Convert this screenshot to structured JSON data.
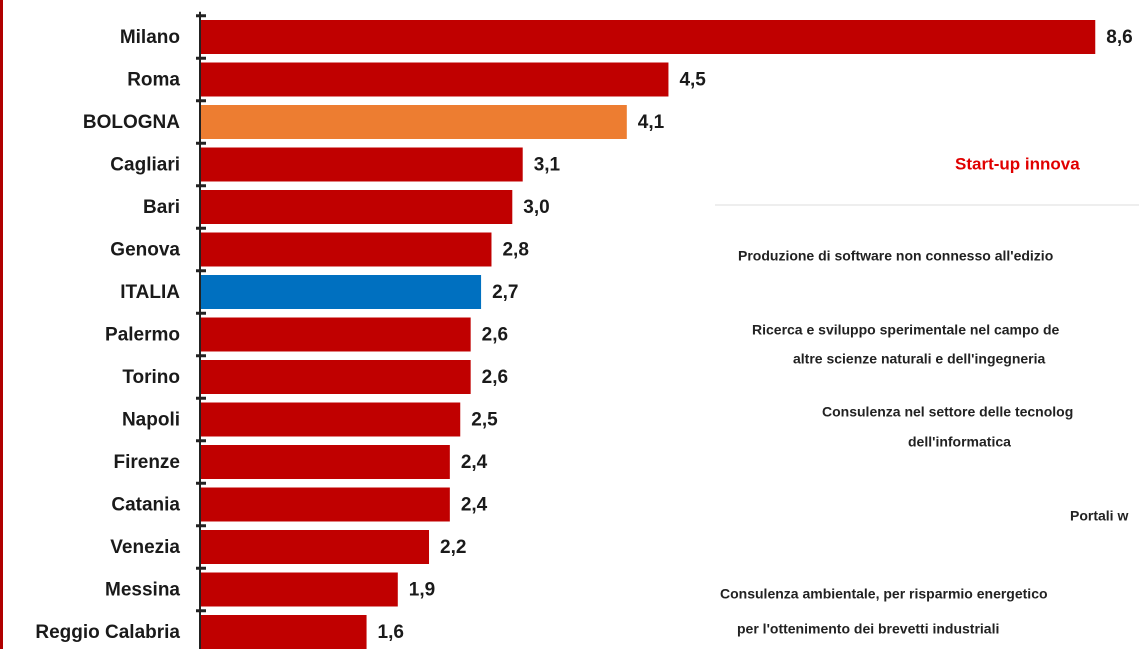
{
  "chart_data": {
    "type": "bar",
    "orientation": "horizontal",
    "categories": [
      "Milano",
      "Roma",
      "BOLOGNA",
      "Cagliari",
      "Bari",
      "Genova",
      "ITALIA",
      "Palermo",
      "Torino",
      "Napoli",
      "Firenze",
      "Catania",
      "Venezia",
      "Messina",
      "Reggio Calabria"
    ],
    "values": [
      8.6,
      4.5,
      4.1,
      3.1,
      3.0,
      2.8,
      2.7,
      2.6,
      2.6,
      2.5,
      2.4,
      2.4,
      2.2,
      1.9,
      1.6
    ],
    "value_labels": [
      "8,6",
      "4,5",
      "4,1",
      "3,1",
      "3,0",
      "2,8",
      "2,7",
      "2,6",
      "2,6",
      "2,5",
      "2,4",
      "2,4",
      "2,2",
      "1,9",
      "1,6"
    ],
    "colors": [
      "#c00000",
      "#c00000",
      "#ed7d31",
      "#c00000",
      "#c00000",
      "#c00000",
      "#0070c0",
      "#c00000",
      "#c00000",
      "#c00000",
      "#c00000",
      "#c00000",
      "#c00000",
      "#c00000",
      "#c00000"
    ],
    "annotations": [
      "Start-up innova",
      "Produzione di software non connesso all'edizio",
      "Ricerca e sviluppo sperimentale nel campo de",
      "altre scienze naturali e dell'ingegneria",
      "Consulenza nel settore delle tecnolog",
      "dell'informatica",
      "Portali w",
      "Consulenza ambientale, per risparmio energetico",
      "per l'ottenimento dei brevetti industriali"
    ]
  }
}
